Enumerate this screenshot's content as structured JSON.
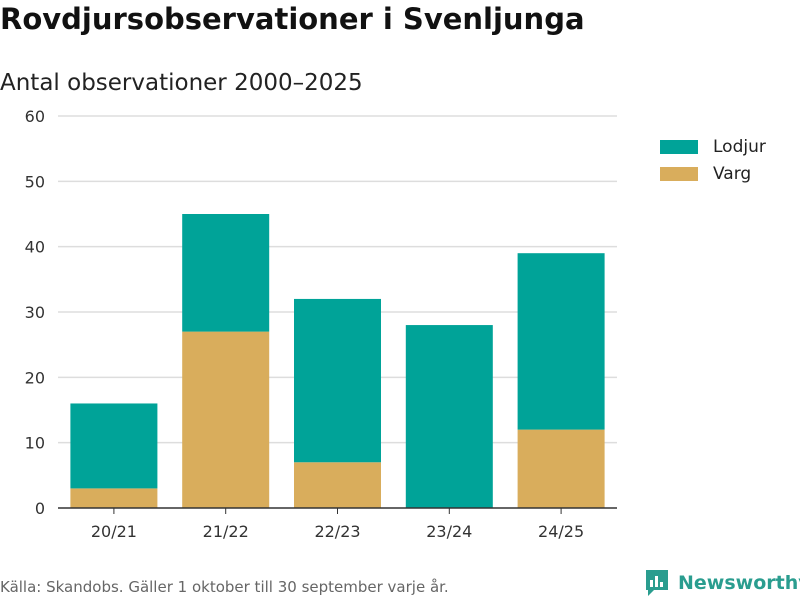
{
  "header": {
    "title": "Rovdjursobservationer i Svenljunga",
    "subtitle": "Antal observationer 2000–2025"
  },
  "legend": {
    "items": [
      {
        "label": "Lodjur",
        "color": "#00a398"
      },
      {
        "label": "Varg",
        "color": "#d9ad5c"
      }
    ]
  },
  "footer": {
    "source": "Källa: Skandobs. Gäller 1 oktober till 30 september varje år.",
    "brand": "Newsworthy"
  },
  "chart_data": {
    "type": "bar",
    "stacked": true,
    "categories": [
      "20/21",
      "21/22",
      "22/23",
      "23/24",
      "24/25"
    ],
    "series": [
      {
        "name": "Varg",
        "values": [
          3,
          27,
          7,
          0,
          12
        ],
        "color": "#d9ad5c"
      },
      {
        "name": "Lodjur",
        "values": [
          13,
          18,
          25,
          28,
          27
        ],
        "color": "#00a398"
      }
    ],
    "yticks": [
      0,
      10,
      20,
      30,
      40,
      50,
      60
    ],
    "ylim": [
      0,
      60
    ],
    "grid": true,
    "legend_position": "top-right",
    "title": "Rovdjursobservationer i Svenljunga",
    "xlabel": "",
    "ylabel": ""
  }
}
